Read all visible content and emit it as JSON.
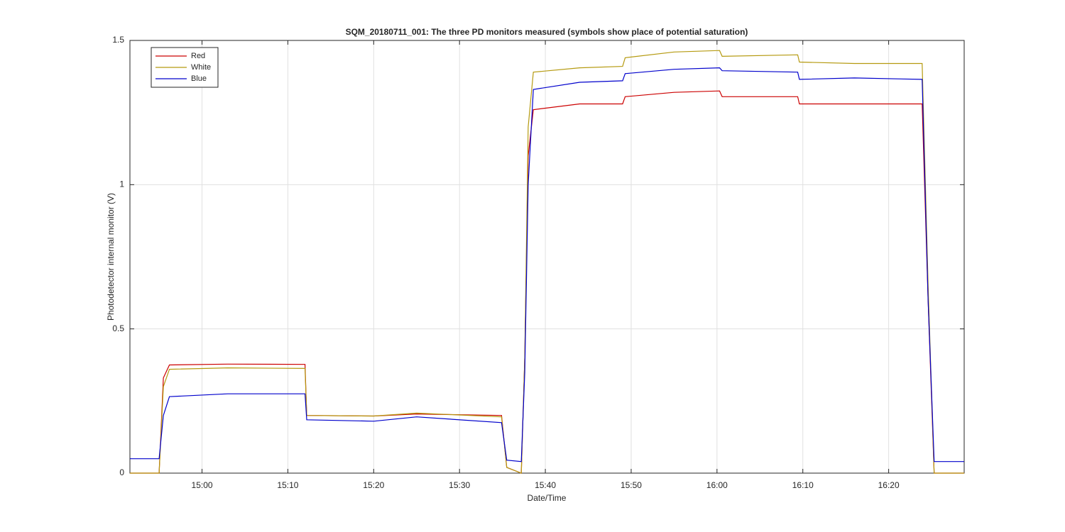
{
  "chart_data": {
    "type": "line",
    "title": "SQM_20180711_001: The three PD monitors measured (symbols show place of potential saturation)",
    "x_label": "Date/Time",
    "y_label": "Photodetector internal monitor (V)",
    "x": [
      891.6,
      895.0,
      895.5,
      896.2,
      903.0,
      912.0,
      912.2,
      920.0,
      925.0,
      934.9,
      935.5,
      937.2,
      937.6,
      938.0,
      938.6,
      944.0,
      949.0,
      949.3,
      955.0,
      960.3,
      960.6,
      969.4,
      969.6,
      976.0,
      983.9,
      984.6,
      985.3,
      988.8
    ],
    "series": [
      {
        "name": "Red",
        "color": "#cc0000",
        "values": [
          0,
          0,
          0.33,
          0.375,
          0.378,
          0.377,
          0.2,
          0.198,
          0.205,
          0.2,
          0.02,
          0,
          0.4,
          1.1,
          1.26,
          1.28,
          1.28,
          1.305,
          1.32,
          1.325,
          1.305,
          1.305,
          1.28,
          1.28,
          1.28,
          0.6,
          0,
          0
        ]
      },
      {
        "name": "White",
        "color": "#b59a10",
        "values": [
          0,
          0,
          0.3,
          0.36,
          0.365,
          0.363,
          0.2,
          0.198,
          0.208,
          0.195,
          0.02,
          0,
          0.4,
          1.2,
          1.39,
          1.405,
          1.41,
          1.44,
          1.46,
          1.465,
          1.445,
          1.45,
          1.425,
          1.42,
          1.42,
          0.65,
          0,
          0
        ]
      },
      {
        "name": "Blue",
        "color": "#0000cc",
        "values": [
          0.05,
          0.05,
          0.2,
          0.265,
          0.275,
          0.275,
          0.185,
          0.18,
          0.195,
          0.175,
          0.045,
          0.04,
          0.35,
          1.0,
          1.33,
          1.355,
          1.36,
          1.385,
          1.4,
          1.405,
          1.395,
          1.39,
          1.365,
          1.37,
          1.365,
          0.6,
          0.04,
          0.04
        ]
      }
    ],
    "xlim": [
      891.6,
      988.8
    ],
    "ylim": [
      0,
      1.5
    ],
    "xticks": [
      {
        "value": 900,
        "label": "15:00"
      },
      {
        "value": 910,
        "label": "15:10"
      },
      {
        "value": 920,
        "label": "15:20"
      },
      {
        "value": 930,
        "label": "15:30"
      },
      {
        "value": 940,
        "label": "15:40"
      },
      {
        "value": 950,
        "label": "15:50"
      },
      {
        "value": 960,
        "label": "16:00"
      },
      {
        "value": 970,
        "label": "16:10"
      },
      {
        "value": 980,
        "label": "16:20"
      }
    ],
    "yticks": [
      0,
      0.5,
      1,
      1.5
    ],
    "grid": true,
    "legend": "top-left"
  }
}
